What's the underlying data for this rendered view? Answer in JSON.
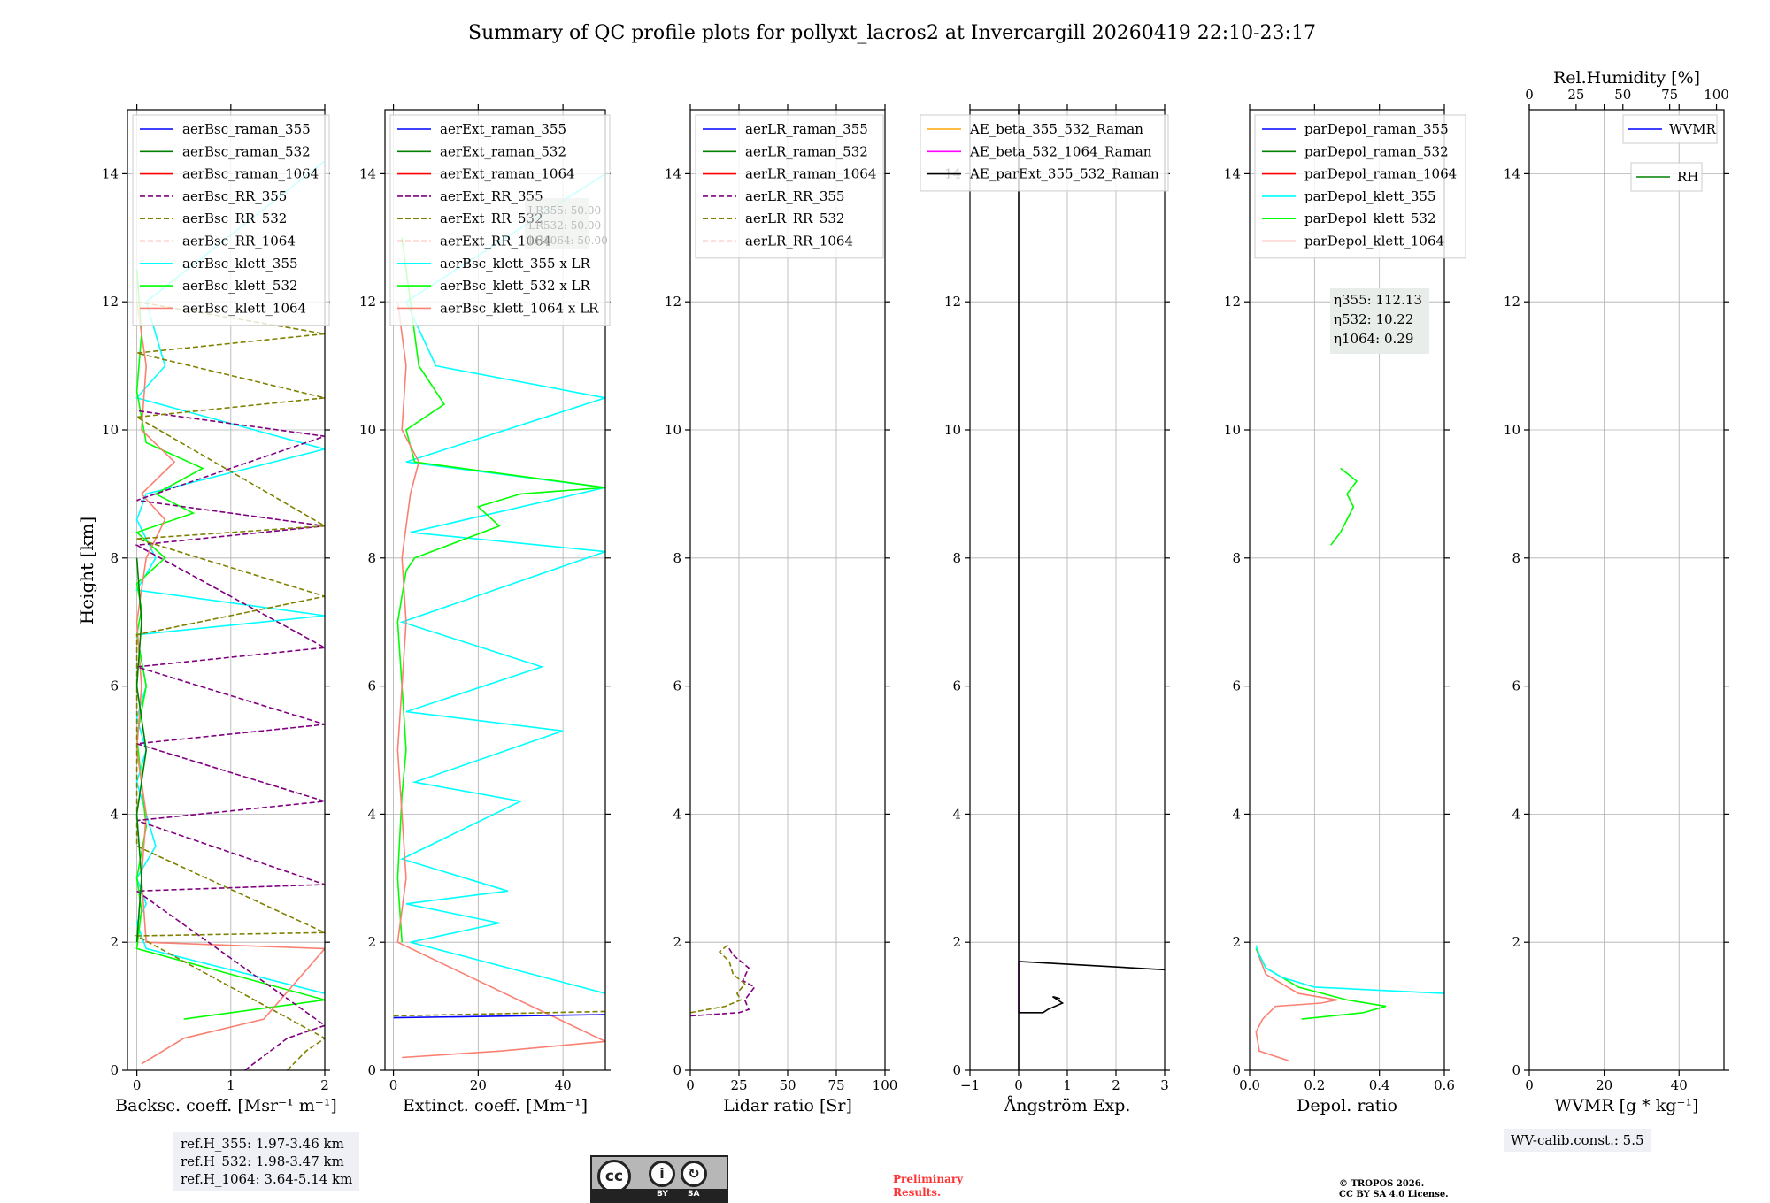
{
  "title": "Summary of QC profile plots for pollyxt_lacros2 at Invercargill 20260419 22:10-23:17",
  "y_axis_label": "Height [km]",
  "footer": {
    "ref_h": [
      "ref.H_355: 1.97-3.46 km",
      "ref.H_532: 1.98-3.47 km",
      "ref.H_1064: 3.64-5.14 km"
    ],
    "wv_calib": "WV-calib.const.: 5.5",
    "preliminary": [
      "Preliminary",
      "Results."
    ],
    "copyright": [
      "© TROPOS 2026.",
      "CC BY SA 4.0 License."
    ],
    "cc_badge": {
      "icon": "cc-by-sa-license-icon",
      "labels": [
        "BY",
        "SA"
      ]
    }
  },
  "colors": {
    "blue": "#0000ff",
    "green": "#008000",
    "red": "#ff0000",
    "purple": "#800080",
    "olive": "#808000",
    "salmon": "#fa8072",
    "cyan": "#00ffff",
    "lime": "#00ff00",
    "orange": "#ffa500",
    "magenta": "#ff00ff",
    "black": "#000000"
  },
  "chart_data": [
    {
      "type": "line",
      "title": "",
      "xlabel": "Backsc. coeff. [Msr⁻¹ m⁻¹]",
      "ylabel": "Height [km]",
      "xlim": [
        -0.1,
        2.0
      ],
      "ylim": [
        0,
        15
      ],
      "xticks": [
        "0",
        "1",
        "2"
      ],
      "xtick_values": [
        0,
        1,
        2
      ],
      "yticks": [
        "0",
        "2",
        "4",
        "6",
        "8",
        "10",
        "12",
        "14"
      ],
      "grid": true,
      "legend_position": "top",
      "legend": [
        "aerBsc_raman_355",
        "aerBsc_raman_532",
        "aerBsc_raman_1064",
        "aerBsc_RR_355",
        "aerBsc_RR_532",
        "aerBsc_RR_1064",
        "aerBsc_klett_355",
        "aerBsc_klett_532",
        "aerBsc_klett_1064"
      ],
      "series": [
        {
          "name": "aerBsc_klett_355",
          "color": "#00ffff",
          "dash": false,
          "x": [
            2.0,
            0.1,
            0.0,
            0.1,
            0.0,
            0.2,
            0.1,
            0.0,
            0.1,
            0.0,
            0.1,
            0.0,
            2.0,
            0.0,
            0.2,
            0.0,
            0.1,
            2.0,
            0.0,
            0.3,
            0.1,
            2.0
          ],
          "y": [
            1.2,
            1.9,
            2.3,
            2.6,
            3.0,
            3.5,
            4.0,
            4.5,
            5.0,
            5.5,
            6.0,
            6.8,
            7.1,
            7.5,
            8.0,
            8.6,
            9.0,
            9.7,
            10.5,
            11.0,
            12.0,
            14.2
          ]
        },
        {
          "name": "aerBsc_klett_532",
          "color": "#00ff00",
          "dash": false,
          "x": [
            0.5,
            2.0,
            0.0,
            0.05,
            0.0,
            0.1,
            0.05,
            0.0,
            0.1,
            0.0,
            0.05,
            0.0,
            0.3,
            0.0,
            0.6,
            0.2,
            0.7,
            0.1,
            0.0,
            0.05,
            0.0
          ],
          "y": [
            0.8,
            1.1,
            1.9,
            2.5,
            3.0,
            3.8,
            4.5,
            5.2,
            6.0,
            6.8,
            7.2,
            7.6,
            8.0,
            8.4,
            8.7,
            9.0,
            9.4,
            9.8,
            10.6,
            11.5,
            12.5
          ]
        },
        {
          "name": "aerBsc_klett_1064",
          "color": "#fa8072",
          "dash": false,
          "x": [
            0.05,
            0.5,
            1.35,
            2.0,
            0.1,
            0.05,
            0.1,
            0.0,
            0.05,
            0.0,
            0.1,
            0.3,
            0.05,
            0.4,
            0.05,
            0.1,
            0.0
          ],
          "y": [
            0.1,
            0.5,
            0.8,
            1.9,
            2.0,
            3.0,
            4.0,
            5.0,
            6.0,
            7.0,
            8.0,
            8.6,
            9.0,
            9.5,
            10.0,
            11.0,
            12.0
          ]
        },
        {
          "name": "aerBsc_RR_355",
          "color": "#800080",
          "dash": true,
          "x": [
            1.15,
            1.6,
            2.0,
            0.0,
            2.0,
            0.0,
            2.0,
            0.0,
            2.0,
            0.0,
            2.0,
            0.0,
            2.0,
            0.0,
            2.0,
            0.0
          ],
          "y": [
            0.0,
            0.5,
            0.7,
            2.8,
            2.9,
            3.9,
            4.2,
            5.1,
            5.4,
            6.3,
            6.6,
            8.2,
            8.5,
            8.9,
            9.9,
            10.3
          ]
        },
        {
          "name": "aerBsc_RR_532",
          "color": "#808000",
          "dash": true,
          "x": [
            1.6,
            1.8,
            2.0,
            1.75,
            0.0,
            2.0,
            0.0,
            0.0,
            2.0,
            0.0,
            2.0,
            0.0,
            2.0,
            0.0,
            2.0,
            0.0
          ],
          "y": [
            0.0,
            0.3,
            0.5,
            0.7,
            2.1,
            2.15,
            3.5,
            6.8,
            7.4,
            8.3,
            8.5,
            10.2,
            10.5,
            11.2,
            11.5,
            12.0
          ]
        },
        {
          "name": "aerBsc_raman_532",
          "color": "#008000",
          "dash": false,
          "x": [
            0.0,
            0.05,
            0.0,
            0.1,
            0.0,
            0.05,
            0.0
          ],
          "y": [
            2.0,
            3.0,
            4.0,
            5.0,
            6.0,
            7.0,
            8.0
          ]
        }
      ]
    },
    {
      "type": "line",
      "xlabel": "Extinct. coeff. [Mm⁻¹]",
      "xlim": [
        -2,
        50
      ],
      "ylim": [
        0,
        15
      ],
      "xticks": [
        "0",
        "20",
        "40"
      ],
      "xtick_values": [
        0,
        20,
        40
      ],
      "grid": true,
      "legend": [
        "aerExt_raman_355",
        "aerExt_raman_532",
        "aerExt_raman_1064",
        "aerExt_RR_355",
        "aerExt_RR_532",
        "aerExt_RR_1064",
        "aerBsc_klett_355 x LR",
        "aerBsc_klett_532 x LR",
        "aerBsc_klett_1064 x LR"
      ],
      "annotation": [
        "LR355: 50.00",
        "LR532: 50.00",
        "LR1064: 50.00"
      ],
      "series": [
        {
          "name": "aerBsc_klett_355 x LR",
          "color": "#00ffff",
          "dash": false,
          "x": [
            50,
            4,
            25,
            3,
            27,
            2,
            30,
            5,
            40,
            3,
            35,
            2,
            50,
            4,
            50,
            3,
            50,
            10,
            3,
            50
          ],
          "y": [
            1.2,
            2.0,
            2.3,
            2.6,
            2.8,
            3.3,
            4.2,
            4.5,
            5.3,
            5.6,
            6.3,
            7.0,
            8.1,
            8.4,
            9.1,
            9.5,
            10.5,
            11.0,
            12.0,
            14.0
          ]
        },
        {
          "name": "aerBsc_klett_532 x LR",
          "color": "#00ff00",
          "dash": false,
          "x": [
            2,
            1,
            2,
            3,
            2,
            1,
            3,
            5,
            25,
            20,
            30,
            50,
            5,
            3,
            12,
            6,
            4,
            2
          ],
          "y": [
            2.0,
            3.0,
            4.3,
            5.0,
            6.0,
            7.0,
            7.8,
            8.0,
            8.5,
            8.8,
            9.0,
            9.1,
            9.5,
            10.0,
            10.4,
            11.0,
            12.0,
            13.0
          ]
        },
        {
          "name": "aerBsc_klett_1064 x LR",
          "color": "#fa8072",
          "dash": false,
          "x": [
            2,
            25,
            50,
            1,
            3,
            2,
            1,
            2,
            3,
            2,
            4,
            6,
            2,
            3,
            1
          ],
          "y": [
            0.2,
            0.3,
            0.45,
            2.0,
            3.0,
            4.0,
            5.0,
            6.0,
            7.0,
            8.0,
            9.0,
            9.5,
            10.0,
            11.0,
            12.0
          ]
        },
        {
          "name": "aerExt_raman_355",
          "color": "#0000ff",
          "dash": false,
          "x": [
            0,
            50
          ],
          "y": [
            0.82,
            0.87
          ]
        },
        {
          "name": "aerExt_RR_532",
          "color": "#808000",
          "dash": true,
          "x": [
            0,
            50
          ],
          "y": [
            0.85,
            0.92
          ]
        }
      ]
    },
    {
      "type": "line",
      "xlabel": "Lidar ratio [Sr]",
      "xlim": [
        0,
        100
      ],
      "ylim": [
        0,
        15
      ],
      "xticks": [
        "0",
        "25",
        "50",
        "75",
        "100"
      ],
      "xtick_values": [
        0,
        25,
        50,
        75,
        100
      ],
      "grid": true,
      "legend": [
        "aerLR_raman_355",
        "aerLR_raman_532",
        "aerLR_raman_1064",
        "aerLR_RR_355",
        "aerLR_RR_532",
        "aerLR_RR_1064"
      ],
      "series": [
        {
          "name": "aerLR_RR_355",
          "color": "#800080",
          "dash": true,
          "x": [
            0,
            25,
            30,
            28,
            33,
            27,
            30,
            22,
            19
          ],
          "y": [
            0.85,
            0.9,
            0.95,
            1.1,
            1.3,
            1.4,
            1.6,
            1.8,
            1.95
          ]
        },
        {
          "name": "aerLR_RR_532",
          "color": "#808000",
          "dash": true,
          "x": [
            0,
            18,
            26,
            24,
            28,
            22,
            20,
            15,
            19
          ],
          "y": [
            0.9,
            1.0,
            1.1,
            1.2,
            1.35,
            1.5,
            1.7,
            1.85,
            1.95
          ]
        }
      ]
    },
    {
      "type": "line",
      "xlabel": "Ångström Exp.",
      "xlim": [
        -1,
        3
      ],
      "ylim": [
        0,
        15
      ],
      "xticks": [
        "−1",
        "0",
        "1",
        "2",
        "3"
      ],
      "xtick_values": [
        -1,
        0,
        1,
        2,
        3
      ],
      "grid": true,
      "legend": [
        "AE_beta_355_532_Raman",
        "AE_beta_532_1064_Raman",
        "AE_parExt_355_532_Raman"
      ],
      "series": [
        {
          "name": "AE_beta_532_1064_Raman",
          "color": "#ff00ff",
          "dash": false,
          "x": [
            0,
            0
          ],
          "y": [
            0.9,
            1.7
          ]
        },
        {
          "name": "AE_parExt_355_532_Raman",
          "color": "#000000",
          "dash": false,
          "x": [
            0,
            0
          ],
          "y": [
            0,
            15
          ]
        },
        {
          "name": "AE_parExt_355_532_Raman_b",
          "color": "#000000",
          "dash": false,
          "x": [
            0,
            3
          ],
          "y": [
            1.7,
            1.57
          ]
        },
        {
          "name": "AE_parExt_355_532_Raman_c",
          "color": "#000000",
          "dash": false,
          "x": [
            0,
            0.5,
            0.6,
            0.9,
            0.7,
            0.85
          ],
          "y": [
            0.9,
            0.9,
            0.95,
            1.05,
            1.15,
            1.12
          ]
        }
      ]
    },
    {
      "type": "line",
      "xlabel": "Depol. ratio",
      "xlim": [
        0,
        0.6
      ],
      "ylim": [
        0,
        15
      ],
      "xticks": [
        "0.0",
        "0.2",
        "0.4",
        "0.6"
      ],
      "xtick_values": [
        0.0,
        0.2,
        0.4,
        0.6
      ],
      "grid": true,
      "legend": [
        "parDepol_raman_355",
        "parDepol_raman_532",
        "parDepol_raman_1064",
        "parDepol_klett_355",
        "parDepol_klett_532",
        "parDepol_klett_1064"
      ],
      "annotation": [
        "η355: 112.13",
        "η532: 10.22",
        "η1064: 0.29"
      ],
      "series": [
        {
          "name": "parDepol_klett_1064",
          "color": "#fa8072",
          "dash": false,
          "x": [
            0.12,
            0.03,
            0.02,
            0.04,
            0.08,
            0.22,
            0.27,
            0.15,
            0.05,
            0.02
          ],
          "y": [
            0.15,
            0.3,
            0.6,
            0.8,
            1.0,
            1.05,
            1.1,
            1.2,
            1.5,
            1.9
          ]
        },
        {
          "name": "parDepol_klett_532",
          "color": "#00ff00",
          "dash": false,
          "x": [
            0.16,
            0.35,
            0.42,
            0.3,
            0.15,
            0.05,
            0.02
          ],
          "y": [
            0.8,
            0.9,
            1.0,
            1.1,
            1.3,
            1.6,
            1.9
          ]
        },
        {
          "name": "parDepol_klett_355",
          "color": "#00ffff",
          "dash": false,
          "x": [
            0.6,
            0.2,
            0.1,
            0.05,
            0.03,
            0.02
          ],
          "y": [
            1.2,
            1.3,
            1.45,
            1.6,
            1.8,
            1.95
          ]
        },
        {
          "name": "parDepol_klett_532_b",
          "color": "#00ff00",
          "dash": false,
          "x": [
            0.25,
            0.28,
            0.3,
            0.32,
            0.3,
            0.33,
            0.28
          ],
          "y": [
            8.2,
            8.4,
            8.6,
            8.8,
            9.0,
            9.2,
            9.4
          ]
        }
      ]
    },
    {
      "type": "line",
      "xlabel": "WVMR [g * kg⁻¹]",
      "xlabel_math": true,
      "x2label": "Rel.Humidity [%]",
      "xlim": [
        0,
        52
      ],
      "ylim": [
        0,
        15
      ],
      "xticks": [
        "0",
        "20",
        "40"
      ],
      "xtick_values": [
        0,
        20,
        40
      ],
      "x2ticks": [
        "0",
        "25",
        "50",
        "75",
        "100"
      ],
      "x2tick_values": [
        0,
        25,
        50,
        75,
        100
      ],
      "grid": true,
      "legend": [
        "WVMR",
        "RH"
      ],
      "series": []
    }
  ]
}
